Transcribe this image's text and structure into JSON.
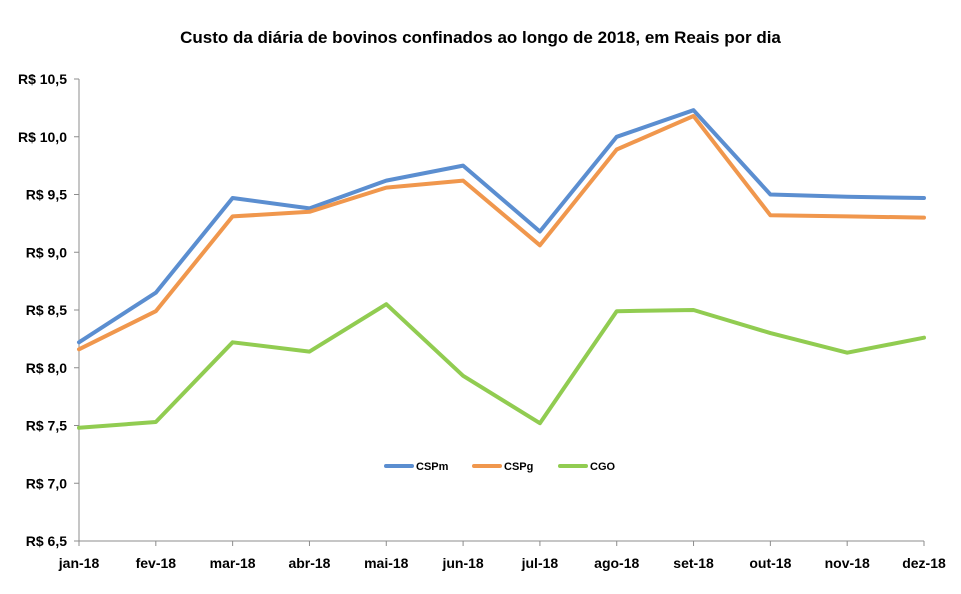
{
  "chart_data": {
    "type": "line",
    "title": "Custo da diária de bovinos confinados ao longo de 2018, em Reais por dia",
    "xlabel": "",
    "ylabel": "",
    "categories": [
      "jan-18",
      "fev-18",
      "mar-18",
      "abr-18",
      "mai-18",
      "jun-18",
      "jul-18",
      "ago-18",
      "set-18",
      "out-18",
      "nov-18",
      "dez-18"
    ],
    "ylim": [
      6.5,
      10.5
    ],
    "yticks": [
      6.5,
      7.0,
      7.5,
      8.0,
      8.5,
      9.0,
      9.5,
      10.0,
      10.5
    ],
    "ytick_labels": [
      "R$ 6,5",
      "R$ 7,0",
      "R$ 7,5",
      "R$ 8,0",
      "R$ 8,5",
      "R$ 9,0",
      "R$ 9,5",
      "R$ 10,0",
      "R$ 10,5"
    ],
    "grid": false,
    "legend_position": "center",
    "series": [
      {
        "name": "CSPm",
        "color": "#5b8ed0",
        "values": [
          8.22,
          8.65,
          9.47,
          9.38,
          9.62,
          9.75,
          9.18,
          10.0,
          10.23,
          9.5,
          9.48,
          9.47
        ]
      },
      {
        "name": "CSPg",
        "color": "#f0974d",
        "values": [
          8.16,
          8.49,
          9.31,
          9.35,
          9.56,
          9.62,
          9.06,
          9.89,
          10.18,
          9.32,
          9.31,
          9.3
        ]
      },
      {
        "name": "CGO",
        "color": "#91cc51",
        "values": [
          7.48,
          7.53,
          8.22,
          8.14,
          8.55,
          7.93,
          7.52,
          8.49,
          8.5,
          8.3,
          8.13,
          8.26
        ]
      }
    ]
  }
}
